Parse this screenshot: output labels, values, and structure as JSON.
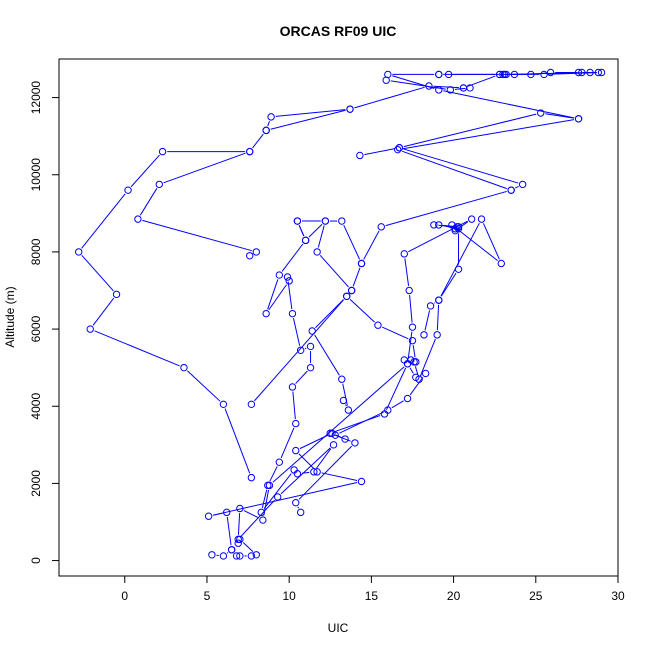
{
  "chart_data": {
    "type": "line",
    "title": "ORCAS RF09 UIC",
    "xlabel": "UIC",
    "ylabel": "Altitude (m)",
    "xlim": [
      -4,
      30
    ],
    "ylim": [
      -400,
      13000
    ],
    "x_ticks": [
      0,
      5,
      10,
      15,
      20,
      25,
      30
    ],
    "y_ticks": [
      0,
      2000,
      4000,
      6000,
      8000,
      10000,
      12000
    ],
    "grid": false,
    "legend": "none",
    "line_color": "#0000ff",
    "marker": "open-circle",
    "series": [
      {
        "points": [
          [
            5.3,
            150
          ],
          [
            6.0,
            120
          ],
          [
            6.5,
            280
          ],
          [
            6.8,
            120
          ],
          [
            7.0,
            120
          ],
          [
            7.7,
            120
          ],
          [
            8.0,
            150
          ],
          [
            7.0,
            550
          ],
          [
            6.9,
            450
          ],
          [
            6.5,
            280
          ],
          [
            6.2,
            1250
          ],
          [
            5.1,
            1150
          ],
          [
            14.4,
            2050
          ],
          [
            11.7,
            2300
          ],
          [
            10.4,
            2850
          ],
          [
            12.6,
            3300
          ],
          [
            13.4,
            3150
          ],
          [
            12.8,
            3250
          ],
          [
            16.0,
            3900
          ],
          [
            17.2,
            4200
          ],
          [
            18.3,
            4850
          ],
          [
            17.7,
            4750
          ],
          [
            17.2,
            5100
          ],
          [
            8.8,
            1950
          ],
          [
            8.4,
            1050
          ],
          [
            7.0,
            1350
          ],
          [
            6.9,
            550
          ],
          [
            9.3,
            1650
          ],
          [
            12.7,
            3000
          ],
          [
            11.5,
            2300
          ],
          [
            10.5,
            2250
          ],
          [
            10.3,
            2350
          ],
          [
            8.3,
            1250
          ],
          [
            8.7,
            1950
          ],
          [
            9.4,
            2550
          ],
          [
            10.4,
            3550
          ],
          [
            10.2,
            4500
          ],
          [
            11.3,
            5000
          ],
          [
            11.3,
            5550
          ],
          [
            10.7,
            5450
          ],
          [
            10.2,
            6400
          ],
          [
            9.9,
            7350
          ],
          [
            10.0,
            7250
          ],
          [
            8.6,
            6400
          ],
          [
            9.4,
            7400
          ],
          [
            11.0,
            8300
          ],
          [
            10.5,
            8800
          ],
          [
            12.2,
            8800
          ],
          [
            11.7,
            8000
          ],
          [
            13.8,
            7000
          ],
          [
            14.4,
            7700
          ],
          [
            15.6,
            8650
          ],
          [
            23.5,
            9600
          ],
          [
            16.6,
            10650
          ],
          [
            27.6,
            11450
          ],
          [
            19.1,
            12200
          ],
          [
            16.0,
            12600
          ],
          [
            19.1,
            12600
          ],
          [
            25.5,
            12600
          ],
          [
            29.0,
            12650
          ],
          [
            27.6,
            12650
          ],
          [
            28.3,
            12650
          ],
          [
            23.0,
            12600
          ],
          [
            23.1,
            12600
          ],
          [
            23.7,
            12600
          ],
          [
            22.8,
            12600
          ],
          [
            20.6,
            12250
          ],
          [
            18.5,
            12300
          ],
          [
            13.7,
            11700
          ],
          [
            8.6,
            11150
          ],
          [
            8.9,
            11500
          ],
          [
            13.7,
            11700
          ]
        ]
      },
      {
        "points": [
          [
            13.3,
            4150
          ],
          [
            13.6,
            3900
          ],
          [
            13.2,
            4700
          ],
          [
            11.4,
            5950
          ],
          [
            13.5,
            6850
          ],
          [
            15.4,
            6100
          ],
          [
            17.5,
            5700
          ],
          [
            17.7,
            5150
          ],
          [
            17.4,
            5200
          ],
          [
            17.0,
            5200
          ],
          [
            17.6,
            5150
          ],
          [
            17.9,
            4700
          ],
          [
            19.0,
            5850
          ],
          [
            19.1,
            6750
          ],
          [
            20.3,
            7550
          ],
          [
            20.3,
            8600
          ],
          [
            19.1,
            8700
          ],
          [
            20.2,
            8650
          ],
          [
            20.1,
            8550
          ],
          [
            21.1,
            8850
          ],
          [
            17.0,
            7950
          ],
          [
            17.3,
            7000
          ],
          [
            17.5,
            6050
          ],
          [
            17.2,
            5100
          ],
          [
            15.8,
            3800
          ],
          [
            12.5,
            3300
          ],
          [
            14.0,
            3050
          ],
          [
            10.4,
            1500
          ],
          [
            10.7,
            1250
          ]
        ]
      },
      {
        "points": [
          [
            7.7,
            2150
          ],
          [
            6.0,
            4050
          ],
          [
            3.6,
            5000
          ],
          [
            -2.1,
            6000
          ],
          [
            -0.5,
            6900
          ],
          [
            -2.8,
            8000
          ],
          [
            0.2,
            9600
          ],
          [
            2.3,
            10600
          ],
          [
            7.6,
            10600
          ],
          [
            8.6,
            11150
          ]
        ]
      },
      {
        "points": [
          [
            7.6,
            7900
          ],
          [
            8.0,
            8000
          ],
          [
            0.8,
            8850
          ],
          [
            2.1,
            9750
          ],
          [
            7.6,
            10600
          ]
        ]
      },
      {
        "points": [
          [
            10.5,
            8800
          ],
          [
            11.0,
            8300
          ],
          [
            12.2,
            8800
          ],
          [
            13.2,
            8800
          ],
          [
            14.4,
            7700
          ]
        ]
      },
      {
        "points": [
          [
            7.7,
            4050
          ],
          [
            13.5,
            6850
          ],
          [
            13.8,
            7000
          ]
        ]
      },
      {
        "points": [
          [
            18.8,
            8700
          ],
          [
            20.3,
            8650
          ],
          [
            20.1,
            8600
          ],
          [
            19.9,
            8700
          ],
          [
            22.9,
            7700
          ],
          [
            21.7,
            8850
          ],
          [
            19.1,
            6750
          ],
          [
            18.6,
            6600
          ],
          [
            18.2,
            5850
          ]
        ]
      },
      {
        "points": [
          [
            14.3,
            10500
          ],
          [
            16.7,
            10700
          ],
          [
            24.2,
            9750
          ],
          [
            23.5,
            9600
          ]
        ]
      },
      {
        "points": [
          [
            16.7,
            10700
          ],
          [
            25.3,
            11600
          ],
          [
            27.6,
            11450
          ]
        ]
      },
      {
        "points": [
          [
            15.9,
            12450
          ],
          [
            19.8,
            12200
          ],
          [
            21.0,
            12250
          ],
          [
            20.6,
            12250
          ]
        ]
      },
      {
        "points": [
          [
            19.1,
            12600
          ],
          [
            19.7,
            12600
          ],
          [
            22.8,
            12600
          ],
          [
            23.2,
            12600
          ],
          [
            24.7,
            12600
          ],
          [
            25.9,
            12650
          ],
          [
            27.8,
            12650
          ],
          [
            28.8,
            12650
          ]
        ]
      }
    ]
  }
}
